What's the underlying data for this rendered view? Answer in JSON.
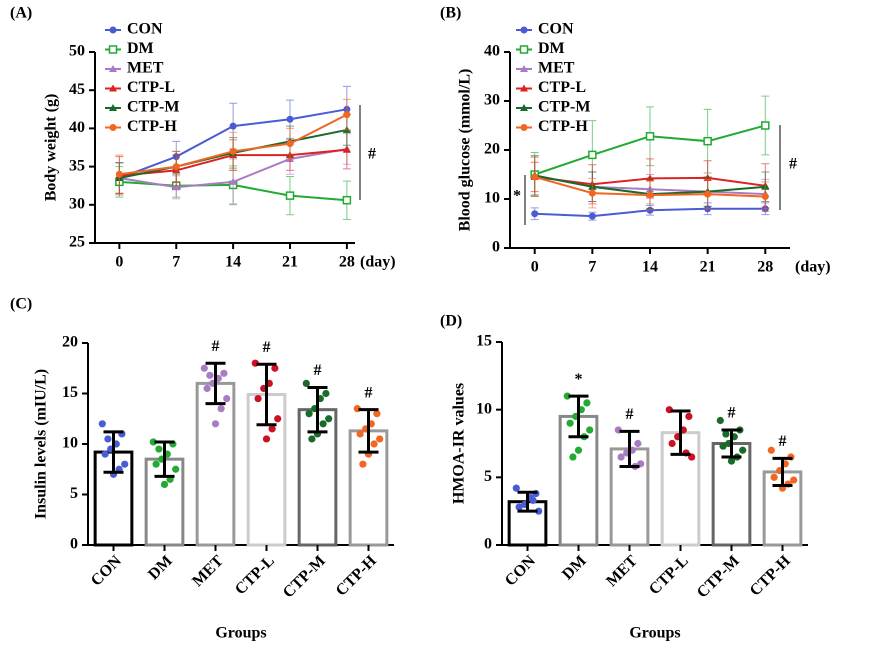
{
  "chart_data": [
    {
      "type": "line",
      "panel_label": "(A)",
      "ylabel": "Body weight (g)",
      "xlabel": "(day)",
      "x": [
        0,
        7,
        14,
        21,
        28
      ],
      "xlim": [
        -3,
        29
      ],
      "xticks": [
        0,
        7,
        14,
        21,
        28
      ],
      "ylim": [
        25,
        50
      ],
      "yticks": [
        25,
        30,
        35,
        40,
        45,
        50
      ],
      "series": [
        {
          "name": "CON",
          "color": "#4a5bd4",
          "marker": "circle",
          "values": [
            33.5,
            36.3,
            40.3,
            41.2,
            42.5
          ],
          "errors": [
            2,
            2,
            3,
            2.5,
            3
          ]
        },
        {
          "name": "DM",
          "color": "#22aa33",
          "marker": "square-open",
          "values": [
            33.0,
            32.5,
            32.6,
            31.2,
            30.6
          ],
          "errors": [
            2,
            1.5,
            2.5,
            2.5,
            2.5
          ]
        },
        {
          "name": "MET",
          "color": "#a97bc4",
          "marker": "triangle",
          "values": [
            33.5,
            32.3,
            33.0,
            36.0,
            37.3
          ],
          "errors": [
            2,
            1.5,
            3,
            2,
            2
          ]
        },
        {
          "name": "CTP-L",
          "color": "#dd2222",
          "marker": "triangle",
          "values": [
            33.8,
            34.5,
            36.5,
            36.5,
            37.2
          ],
          "errors": [
            2.5,
            2,
            2,
            2,
            2.5
          ]
        },
        {
          "name": "CTP-M",
          "color": "#1a6b2a",
          "marker": "triangle",
          "values": [
            33.5,
            35.0,
            36.8,
            38.3,
            39.8
          ],
          "errors": [
            2,
            2,
            2,
            2,
            2
          ]
        },
        {
          "name": "CTP-H",
          "color": "#f26522",
          "marker": "circle",
          "values": [
            34.0,
            35.0,
            37.0,
            38.0,
            41.8
          ],
          "errors": [
            2.5,
            2,
            2.5,
            2,
            2
          ]
        }
      ],
      "annotations": [
        {
          "text": "#"
        }
      ]
    },
    {
      "type": "line",
      "panel_label": "(B)",
      "ylabel": "Blood glucose (mmol/L)",
      "xlabel": "(day)",
      "x": [
        0,
        7,
        14,
        21,
        28
      ],
      "xlim": [
        -3,
        31
      ],
      "xticks": [
        0,
        7,
        14,
        21,
        28
      ],
      "ylim": [
        0,
        40
      ],
      "yticks": [
        0,
        10,
        20,
        30,
        40
      ],
      "series": [
        {
          "name": "CON",
          "color": "#4a5bd4",
          "marker": "circle",
          "values": [
            7.0,
            6.5,
            7.7,
            8.0,
            8.0
          ],
          "errors": [
            1.2,
            0.8,
            1,
            1.2,
            1.2
          ]
        },
        {
          "name": "DM",
          "color": "#22aa33",
          "marker": "square-open",
          "values": [
            15.0,
            19.0,
            22.8,
            21.8,
            25.0
          ],
          "errors": [
            4.5,
            7,
            6,
            6.5,
            6
          ]
        },
        {
          "name": "MET",
          "color": "#a97bc4",
          "marker": "triangle",
          "values": [
            14.8,
            12.5,
            12.0,
            11.5,
            11.0
          ],
          "errors": [
            4,
            3,
            3,
            3,
            3
          ]
        },
        {
          "name": "CTP-L",
          "color": "#dd2222",
          "marker": "triangle",
          "values": [
            14.5,
            13.0,
            14.2,
            14.3,
            12.7
          ],
          "errors": [
            3,
            4,
            4,
            3.5,
            4.5
          ]
        },
        {
          "name": "CTP-M",
          "color": "#1a6b2a",
          "marker": "triangle",
          "values": [
            14.8,
            12.5,
            11.0,
            11.5,
            12.5
          ],
          "errors": [
            4,
            3,
            3,
            3,
            3
          ]
        },
        {
          "name": "CTP-H",
          "color": "#f26522",
          "marker": "circle",
          "values": [
            14.5,
            11.2,
            10.8,
            11.0,
            10.5
          ],
          "errors": [
            4,
            3,
            3,
            3,
            3
          ]
        }
      ],
      "annotations": [
        {
          "text": "*"
        },
        {
          "text": "#"
        }
      ]
    },
    {
      "type": "bar",
      "panel_label": "(C)",
      "ylabel": "Insulin levels (mIU/L)",
      "xlabel": "Groups",
      "categories": [
        "CON",
        "DM",
        "MET",
        "CTP-L",
        "CTP-M",
        "CTP-H"
      ],
      "values": [
        9.2,
        8.5,
        16.0,
        14.9,
        13.4,
        11.3
      ],
      "errors": [
        2.0,
        1.7,
        2.0,
        3.0,
        2.2,
        2.1
      ],
      "edge_colors": [
        "#000000",
        "#888888",
        "#999999",
        "#cccccc",
        "#666666",
        "#999999"
      ],
      "point_colors": [
        "#4a5bd4",
        "#22aa33",
        "#a97bc4",
        "#cc1122",
        "#1a6b2a",
        "#f26522"
      ],
      "points": [
        [
          12.0,
          11.0,
          10.0,
          9.5,
          9.0,
          8.0,
          7.5,
          7.0,
          10.5
        ],
        [
          10.2,
          10.0,
          9.0,
          8.5,
          8.0,
          7.5,
          6.5,
          6.0,
          9.5
        ],
        [
          17.5,
          17.0,
          16.5,
          16.0,
          15.5,
          14.5,
          13.5,
          12.0,
          16.8
        ],
        [
          18.0,
          17.5,
          16.0,
          15.5,
          14.5,
          12.5,
          11.5,
          10.5
        ],
        [
          16.0,
          15.0,
          14.5,
          13.5,
          13.0,
          12.5,
          12.0,
          11.0,
          10.5
        ],
        [
          13.5,
          13.0,
          12.0,
          11.5,
          11.0,
          10.5,
          10.0,
          9.0,
          8.0
        ]
      ],
      "ylim": [
        0,
        20
      ],
      "yticks": [
        0,
        5,
        10,
        15,
        20
      ],
      "annotations": [
        {
          "text": "#",
          "category": "MET"
        },
        {
          "text": "#",
          "category": "CTP-L"
        },
        {
          "text": "#",
          "category": "CTP-M"
        },
        {
          "text": "#",
          "category": "CTP-H"
        }
      ]
    },
    {
      "type": "bar",
      "panel_label": "(D)",
      "ylabel": "HMOA-IR values",
      "xlabel": "Groups",
      "categories": [
        "CON",
        "DM",
        "MET",
        "CTP-L",
        "CTP-M",
        "CTP-H"
      ],
      "values": [
        3.2,
        9.5,
        7.1,
        8.3,
        7.5,
        5.4
      ],
      "errors": [
        0.7,
        1.5,
        1.3,
        1.6,
        1.0,
        1.0
      ],
      "edge_colors": [
        "#000000",
        "#888888",
        "#999999",
        "#cccccc",
        "#666666",
        "#999999"
      ],
      "point_colors": [
        "#4a5bd4",
        "#22aa33",
        "#a97bc4",
        "#cc1122",
        "#1a6b2a",
        "#f26522"
      ],
      "points": [
        [
          4.2,
          3.8,
          3.5,
          3.0,
          2.8,
          2.5,
          3.3
        ],
        [
          11.0,
          10.5,
          10.0,
          9.5,
          9.0,
          8.5,
          8.0,
          7.0,
          6.5
        ],
        [
          8.5,
          7.5,
          7.0,
          6.8,
          6.5,
          6.0,
          5.8
        ],
        [
          10.0,
          9.5,
          8.5,
          8.0,
          7.5,
          6.5,
          6.8
        ],
        [
          9.2,
          8.5,
          8.0,
          7.5,
          7.3,
          7.0,
          6.5,
          6.2,
          8.2
        ],
        [
          7.0,
          6.5,
          6.0,
          5.5,
          5.0,
          4.8,
          4.5,
          4.2
        ]
      ],
      "ylim": [
        0,
        15
      ],
      "yticks": [
        0,
        5,
        10,
        15
      ],
      "annotations": [
        {
          "text": "*",
          "category": "DM"
        },
        {
          "text": "#",
          "category": "MET"
        },
        {
          "text": "#",
          "category": "CTP-M"
        },
        {
          "text": "#",
          "category": "CTP-H"
        }
      ]
    }
  ]
}
